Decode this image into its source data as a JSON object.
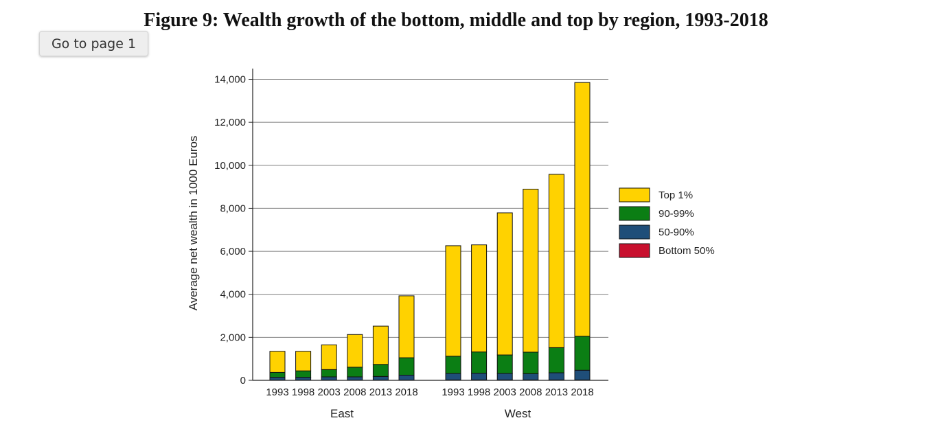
{
  "title": "Figure 9: Wealth growth of the bottom, middle and top by region, 1993-2018",
  "navigation": {
    "go_to_page_label": "Go to page 1"
  },
  "chart_data": {
    "type": "bar",
    "stacked": true,
    "ylabel": "Average net wealth in 1000 Euros",
    "ylim": [
      0,
      14500
    ],
    "yticks": [
      0,
      2000,
      4000,
      6000,
      8000,
      10000,
      12000,
      14000
    ],
    "ytick_labels": [
      "0",
      "2,000",
      "4,000",
      "6,000",
      "8,000",
      "10,000",
      "12,000",
      "14,000"
    ],
    "grid": "horizontal",
    "legend_position": "right",
    "groups": [
      {
        "label": "East",
        "categories": [
          "1993",
          "1998",
          "2003",
          "2008",
          "2013",
          "2018"
        ]
      },
      {
        "label": "West",
        "categories": [
          "1993",
          "1998",
          "2003",
          "2008",
          "2013",
          "2018"
        ]
      }
    ],
    "series": [
      {
        "name": "Bottom 50%",
        "color": "#c8102e",
        "values": [
          10,
          10,
          10,
          10,
          10,
          10,
          20,
          20,
          20,
          20,
          20,
          20
        ]
      },
      {
        "name": "50-90%",
        "color": "#1f4e79",
        "values": [
          130,
          130,
          150,
          150,
          170,
          230,
          300,
          310,
          300,
          290,
          330,
          450
        ]
      },
      {
        "name": "90-99%",
        "color": "#0b7e14",
        "values": [
          230,
          300,
          340,
          450,
          560,
          810,
          800,
          990,
          860,
          1000,
          1170,
          1580
        ]
      },
      {
        "name": "Top 1%",
        "color": "#ffd200",
        "values": [
          980,
          910,
          1150,
          1520,
          1780,
          2880,
          5140,
          4980,
          6610,
          7580,
          8060,
          11800
        ]
      }
    ],
    "legend_order": [
      "Top 1%",
      "90-99%",
      "50-90%",
      "Bottom 50%"
    ]
  }
}
